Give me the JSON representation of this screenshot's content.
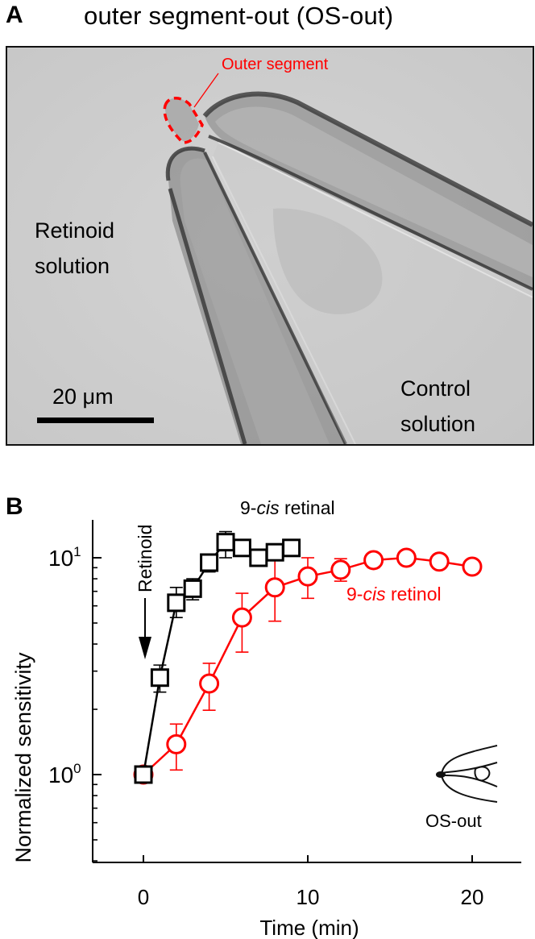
{
  "panel_a": {
    "letter": "A",
    "title": "outer segment-out  (OS-out)",
    "labels": {
      "outer_segment": "Outer segment",
      "retinoid_line1": "Retinoid",
      "retinoid_line2": "solution",
      "control_line1": "Control",
      "control_line2": "solution",
      "scale_bar": "20 μm"
    },
    "colors": {
      "annotation": "#ff0000",
      "background": "#cfcfcf"
    }
  },
  "panel_b": {
    "letter": "B",
    "series_label_retinal_prefix": "9-",
    "series_label_retinal_italic": "cis",
    "series_label_retinal_suffix": " retinal",
    "series_label_retinol_prefix": "9-",
    "series_label_retinol_italic": "cis",
    "series_label_retinol_suffix": " retinol",
    "arrow_label": "Retinoid",
    "inset_label": "OS-out",
    "ylabel": "Normalized sensitivity",
    "xlabel": "Time (min)",
    "ytick_base_1": "10",
    "ytick_exp_1": "1",
    "ytick_base_0": "10",
    "ytick_exp_0": "0",
    "xticks": [
      "0",
      "10",
      "20"
    ]
  },
  "chart_data": {
    "type": "line",
    "title": "",
    "xlabel": "Time (min)",
    "ylabel": "Normalized sensitivity",
    "yscale": "log",
    "xlim": [
      -3,
      23
    ],
    "ylim": [
      0.4,
      15
    ],
    "xticks": [
      0,
      10,
      20
    ],
    "yticks": [
      1,
      10
    ],
    "grid": false,
    "annotations": [
      {
        "text": "Retinoid",
        "type": "arrow",
        "x": 0,
        "direction": "down"
      },
      {
        "text": "OS-out",
        "type": "inset-icon",
        "position": "lower-right"
      }
    ],
    "series": [
      {
        "name": "9-cis retinal",
        "color": "#000000",
        "marker": "square",
        "x": [
          0,
          1,
          2,
          3,
          4,
          5,
          6,
          7,
          8,
          9
        ],
        "values": [
          1.0,
          2.8,
          6.2,
          7.2,
          9.5,
          11.8,
          11.1,
          10.0,
          10.6,
          11.1
        ],
        "err_low": [
          1.0,
          2.4,
          5.3,
          6.4,
          8.6,
          10.0,
          10.2,
          9.4,
          10.0,
          10.6
        ],
        "err_high": [
          1.05,
          3.2,
          7.3,
          8.0,
          10.4,
          13.2,
          12.0,
          10.6,
          11.3,
          11.6
        ]
      },
      {
        "name": "9-cis retinol",
        "color": "#ff0000",
        "marker": "circle",
        "x": [
          0,
          2,
          4,
          6,
          8,
          10,
          12,
          14,
          16,
          18,
          20
        ],
        "values": [
          1.0,
          1.38,
          2.63,
          5.3,
          7.3,
          8.2,
          8.8,
          9.75,
          10.0,
          9.6,
          9.1
        ],
        "err_low": [
          0.95,
          1.05,
          1.98,
          3.67,
          5.1,
          6.5,
          7.8,
          9.0,
          9.4,
          9.1,
          8.5
        ],
        "err_high": [
          1.05,
          1.71,
          3.26,
          6.86,
          10.0,
          10.0,
          9.9,
          10.5,
          10.5,
          10.2,
          9.8
        ]
      }
    ]
  }
}
